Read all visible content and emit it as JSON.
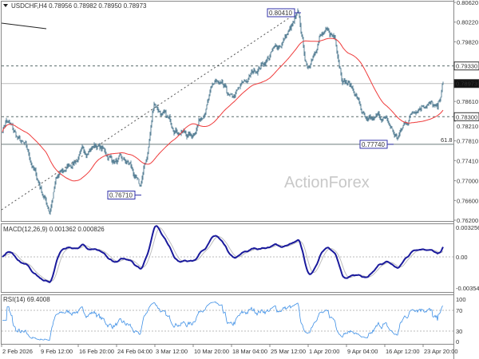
{
  "chart_data": {
    "type": "candlestick",
    "symbol_header": "USDCHF,H4",
    "ohlc_header": "0.78956 0.78982 0.78950 0.78973",
    "watermark": "ActionForex",
    "price_axis": {
      "ylim": [
        0.762,
        0.8062
      ],
      "ticks": [
        "0.80620",
        "0.80220",
        "0.79820",
        "0.78610",
        "0.78210",
        "0.77810",
        "0.77410",
        "0.77000",
        "0.76600",
        "0.76200"
      ],
      "tick_values": [
        0.8062,
        0.8022,
        0.7982,
        0.7861,
        0.7821,
        0.7781,
        0.7741,
        0.77,
        0.766,
        0.762
      ]
    },
    "levels": [
      {
        "label": "0.79330",
        "value": 0.7933,
        "style": "dashed",
        "boxed": true
      },
      {
        "label": "0.78973",
        "value": 0.78973,
        "style": "current",
        "boxed": true
      },
      {
        "label": "0.78300",
        "value": 0.783,
        "style": "dashed",
        "boxed": true
      },
      {
        "label": "61.8",
        "value": 0.7774,
        "style": "fib",
        "boxed": false
      }
    ],
    "annotations": [
      {
        "label": "0.80410",
        "value": 0.8041,
        "bar": 372
      },
      {
        "label": "0.76710",
        "value": 0.7671,
        "bar": 172
      },
      {
        "label": "0.77740",
        "value": 0.7774,
        "bar": 488
      }
    ],
    "price_path": [
      [
        0,
        0.7805
      ],
      [
        5,
        0.7825
      ],
      [
        17,
        0.779
      ],
      [
        30,
        0.776
      ],
      [
        47,
        0.769
      ],
      [
        59,
        0.764
      ],
      [
        67,
        0.77
      ],
      [
        92,
        0.7745
      ],
      [
        117,
        0.7775
      ],
      [
        137,
        0.7745
      ],
      [
        160,
        0.773
      ],
      [
        172,
        0.768
      ],
      [
        182,
        0.7755
      ],
      [
        190,
        0.786
      ],
      [
        207,
        0.782
      ],
      [
        237,
        0.779
      ],
      [
        267,
        0.79
      ],
      [
        287,
        0.786
      ],
      [
        317,
        0.7925
      ],
      [
        347,
        0.7975
      ],
      [
        371,
        0.803
      ],
      [
        382,
        0.792
      ],
      [
        397,
        0.8
      ],
      [
        417,
        0.799
      ],
      [
        425,
        0.792
      ],
      [
        442,
        0.788
      ],
      [
        457,
        0.781
      ],
      [
        477,
        0.783
      ],
      [
        494,
        0.7785
      ],
      [
        517,
        0.785
      ],
      [
        532,
        0.7865
      ],
      [
        545,
        0.784
      ],
      [
        552,
        0.7897
      ]
    ],
    "ma_period": 55,
    "x_ticks": [
      "2 Feb 2026",
      "9 Feb 12:00",
      "16 Feb 20:00",
      "24 Feb 04:00",
      "3 Mar 12:00",
      "10 Mar 20:00",
      "18 Mar 04:00",
      "25 Mar 12:00",
      "1 Apr 20:00",
      "9 Apr 04:00",
      "16 Apr 12:00",
      "23 Apr 20:00"
    ],
    "macd": {
      "header": "MACD(12,26,9) 0.001362 0.000826",
      "ticks": [
        "0.003256",
        "0.00",
        "-0.00354"
      ],
      "ylim": [
        -0.00354,
        0.003256
      ]
    },
    "rsi": {
      "header": "RSI(14) 69.4008",
      "ticks": [
        "100",
        "70",
        "30",
        "0"
      ],
      "ylim": [
        0,
        100
      ]
    },
    "colors": {
      "candles": "#5a8297",
      "ma": "#ef3b3b",
      "macd": "#1a1a9c",
      "signal": "#bdbdbd",
      "rsi": "#3d8fe6",
      "box": "#3333aa"
    }
  }
}
